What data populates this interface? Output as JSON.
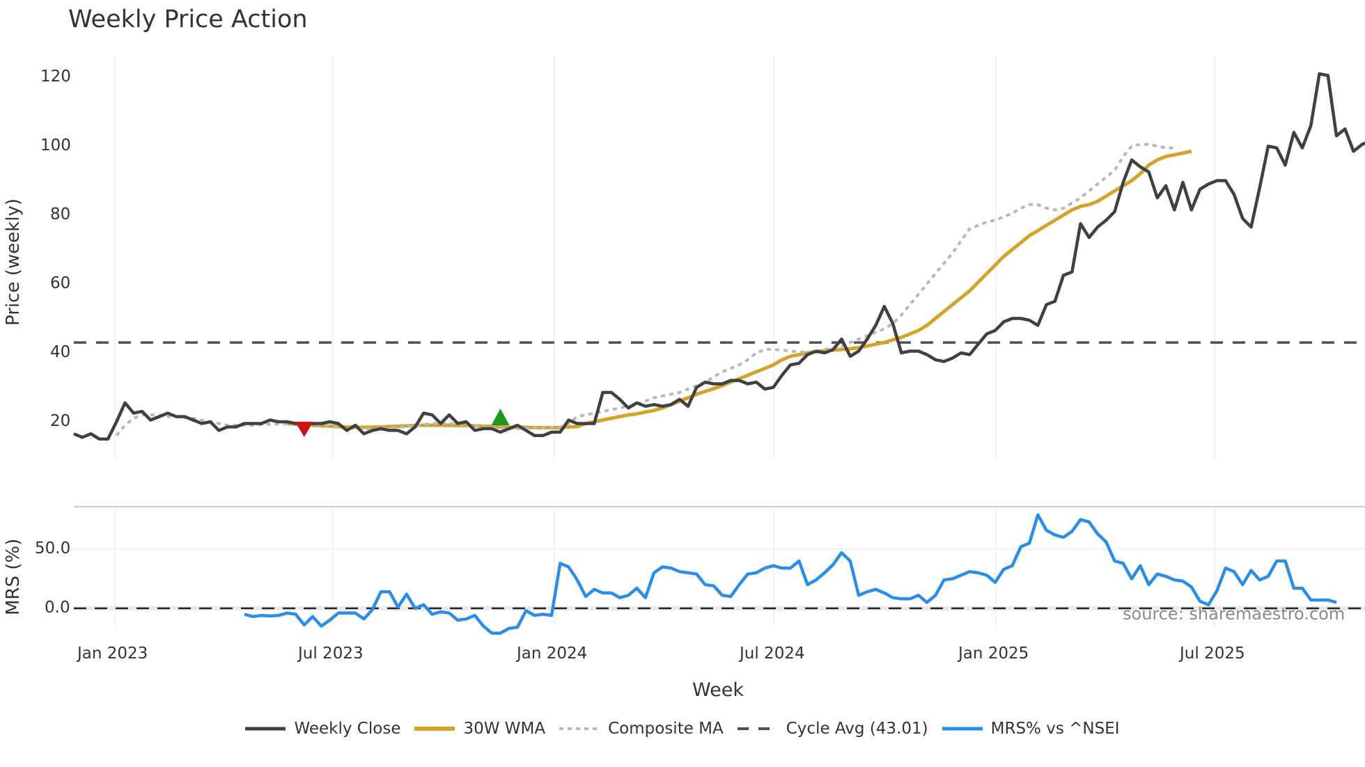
{
  "title": "Weekly Price Action",
  "price_panel": {
    "ylabel": "Price (weekly)",
    "yticks": [
      "120",
      "100",
      "80",
      "60",
      "40",
      "20"
    ],
    "ytick_values": [
      120,
      100,
      80,
      60,
      40,
      20
    ]
  },
  "mrs_panel": {
    "ylabel": "MRS (%)",
    "yticks": [
      "50.0",
      "0.0"
    ],
    "ytick_values": [
      50,
      0
    ]
  },
  "xaxis": {
    "label": "Week",
    "ticks": [
      "Jan 2023",
      "Jul 2023",
      "Jan 2024",
      "Jul 2024",
      "Jan 2025",
      "Jul 2025"
    ]
  },
  "legend": [
    {
      "label": "Weekly Close",
      "style": "solid",
      "color": "#404040"
    },
    {
      "label": "30W WMA",
      "style": "solid",
      "color": "#d4a32a"
    },
    {
      "label": "Composite MA",
      "style": "dotted",
      "color": "#b8b8b8"
    },
    {
      "label": "Cycle Avg (43.01)",
      "style": "dashed",
      "color": "#505050"
    },
    {
      "label": "MRS% vs ^NSEI",
      "style": "solid",
      "color": "#2a8de8"
    }
  ],
  "source": "source: sharemaestro.com",
  "colors": {
    "close": "#404040",
    "wma": "#d4a32a",
    "composite": "#b8b8b8",
    "cycle": "#505050",
    "mrs": "#2a8de8",
    "sell_marker": "#cc1111",
    "buy_marker": "#1a9a1a",
    "grid": "#eceef2"
  },
  "chart_data": [
    {
      "type": "line",
      "title": "Weekly Price Action",
      "xlabel": "Week",
      "ylabel": "Price (weekly)",
      "ylim": [
        9,
        127
      ],
      "x_ticks": [
        "Jan 2023",
        "Jul 2023",
        "Jan 2024",
        "Jul 2024",
        "Jan 2025",
        "Jul 2025"
      ],
      "grid": "vertical",
      "legend_position": "bottom",
      "x_start": "2022-11 (approx)",
      "cycle_avg": 43.01,
      "markers": [
        {
          "type": "sell",
          "shape": "triangle-down",
          "week_index": 27,
          "price": 18
        },
        {
          "type": "buy",
          "shape": "triangle-up",
          "week_index": 50,
          "price": 21
        }
      ],
      "series": [
        {
          "name": "Weekly Close",
          "values": [
            16.5,
            15.5,
            16.5,
            15,
            15,
            20,
            25.5,
            22.5,
            23,
            20.5,
            21.5,
            22.5,
            21.5,
            21.5,
            20.5,
            19.5,
            20,
            17.5,
            18.5,
            18.5,
            19.5,
            19.5,
            19.5,
            20.5,
            20,
            20,
            19.5,
            19.5,
            19.5,
            19.5,
            20,
            19.5,
            17.5,
            19,
            16.5,
            17.5,
            18,
            17.5,
            17.5,
            16.5,
            18.5,
            22.5,
            22,
            19.5,
            22,
            19.5,
            20,
            17.5,
            18,
            18,
            17,
            18,
            19,
            17.5,
            16,
            16,
            17,
            17,
            20.5,
            19.5,
            19.5,
            19.5,
            28.5,
            28.5,
            26.5,
            24,
            25.5,
            24.5,
            25,
            24.5,
            25,
            26.5,
            24.5,
            30,
            31.5,
            31,
            31,
            32,
            32,
            31,
            31.5,
            29.5,
            30,
            33.5,
            36.5,
            37,
            39.5,
            40.5,
            40,
            41,
            44,
            39,
            40.5,
            44,
            48,
            53.5,
            48.5,
            40,
            40.5,
            40.5,
            39.5,
            38,
            37.5,
            38.5,
            40,
            39.5,
            42.5,
            45.5,
            46.5,
            49,
            50,
            50,
            49.5,
            48,
            54,
            55,
            62.5,
            63.5,
            77.5,
            73.5,
            76.5,
            78.5,
            81,
            89.5,
            96,
            94,
            92.5,
            85,
            88.5,
            81.5,
            89.5,
            81.5,
            87.5,
            89,
            90,
            90,
            86,
            79,
            76.5,
            88,
            100,
            99.5,
            94.5,
            104,
            99.5,
            106,
            121,
            120.5,
            103,
            105,
            98.5,
            100.5,
            101.5,
            99.5
          ]
        },
        {
          "name": "30W WMA",
          "values": [
            null,
            null,
            null,
            null,
            null,
            null,
            null,
            null,
            null,
            null,
            null,
            null,
            null,
            null,
            null,
            null,
            null,
            null,
            null,
            null,
            null,
            null,
            null,
            null,
            null,
            19.5,
            19.3,
            19.1,
            19,
            18.8,
            18.7,
            18.6,
            18.5,
            18.4,
            18.4,
            18.4,
            18.5,
            18.6,
            18.7,
            18.8,
            18.9,
            19,
            19,
            19,
            19,
            18.9,
            18.9,
            18.8,
            18.7,
            18.6,
            18.5,
            18.4,
            18.4,
            18.4,
            18.3,
            18.3,
            18.3,
            18.3,
            18.5,
            18.6,
            19.5,
            20,
            20.5,
            21,
            21.5,
            22,
            22.3,
            22.8,
            23.3,
            24,
            25,
            26,
            27,
            28,
            28.8,
            29.6,
            30.5,
            31.5,
            32.5,
            33.5,
            34.5,
            35.5,
            36.5,
            38,
            39,
            39.5,
            40,
            40.3,
            40.6,
            40.8,
            41,
            41.2,
            41.5,
            42,
            42.5,
            43,
            43.8,
            44.5,
            45.5,
            46.5,
            48,
            50,
            52,
            54,
            56,
            58,
            60.5,
            63,
            65.5,
            68,
            70,
            72,
            74,
            75.5,
            77,
            78.5,
            80,
            81.5,
            82.5,
            83,
            84,
            85.5,
            87,
            88.5,
            90,
            92,
            94.5,
            96,
            97,
            97.5,
            98,
            98.5
          ]
        },
        {
          "name": "Composite MA",
          "values": [
            null,
            null,
            null,
            null,
            null,
            16,
            19,
            21,
            22,
            22,
            21.8,
            21.5,
            21.5,
            21.2,
            21,
            20.5,
            20,
            19.5,
            19,
            19,
            19,
            19,
            19.2,
            19.3,
            19.4,
            19.5,
            19.4,
            19.2,
            19,
            18.8,
            18.6,
            18.4,
            18.2,
            18.1,
            18,
            18,
            18.1,
            18.2,
            18.4,
            18.6,
            18.8,
            19.2,
            19.5,
            19.6,
            19.5,
            19.3,
            19,
            18.8,
            18.6,
            18.4,
            18.2,
            18,
            18,
            18.1,
            18.2,
            18.3,
            18.4,
            18.5,
            19.5,
            21.5,
            22,
            22.5,
            23,
            23.5,
            24,
            24.5,
            25,
            26,
            27,
            27.5,
            28,
            28.5,
            29.5,
            30.5,
            31.5,
            33,
            34.5,
            35.5,
            36.5,
            38,
            40,
            41,
            41,
            40.8,
            40.5,
            40.3,
            40.2,
            40.5,
            41,
            41.5,
            42,
            43,
            44,
            45,
            46,
            47,
            48.5,
            51,
            54,
            57,
            60,
            63,
            66,
            69,
            72.5,
            76,
            77,
            78,
            78.5,
            79.5,
            80.5,
            82,
            83,
            83,
            82,
            81.5,
            82,
            83.5,
            85,
            87,
            89,
            91,
            93,
            97,
            100,
            100.5,
            100.5,
            100,
            99.5,
            99.5
          ]
        },
        {
          "name": "Cycle Avg (43.01)",
          "values": [
            43.01
          ]
        }
      ]
    },
    {
      "type": "line",
      "title": "",
      "xlabel": "Week",
      "ylabel": "MRS (%)",
      "ylim": [
        -35,
        90
      ],
      "yticks": [
        0.0,
        50.0
      ],
      "reference_line": 0,
      "series": [
        {
          "name": "MRS% vs ^NSEI",
          "start_week_index": 20,
          "values": [
            -5,
            -7,
            -6,
            -6.5,
            -6,
            -4,
            -5,
            -14,
            -7,
            -15,
            -10,
            -4,
            -4,
            -4,
            -9,
            -1,
            14,
            14,
            1,
            12,
            0,
            3,
            -5,
            -3,
            -4,
            -10,
            -9,
            -6,
            -15,
            -21,
            -21,
            -17,
            -16,
            -2,
            -6,
            -5,
            -6,
            38,
            35,
            24,
            10,
            16,
            13,
            13,
            9,
            11,
            17,
            9,
            30,
            35,
            34,
            31,
            30,
            29,
            20,
            19,
            11,
            10,
            20,
            29,
            30,
            34,
            36,
            34,
            34,
            40,
            20,
            24,
            30,
            37,
            47,
            40,
            11,
            14,
            16,
            13,
            9,
            8,
            8,
            11,
            5,
            11,
            24,
            25,
            28,
            31,
            30,
            28,
            22,
            33,
            36,
            52,
            55,
            79,
            66,
            62,
            60,
            65,
            75,
            73,
            63,
            56,
            40,
            38,
            25,
            36,
            20,
            29,
            27,
            24,
            23,
            18,
            6,
            3,
            15,
            34,
            31,
            20,
            32,
            24,
            27,
            40,
            40,
            17,
            17,
            7,
            7,
            7,
            5
          ]
        }
      ]
    }
  ]
}
